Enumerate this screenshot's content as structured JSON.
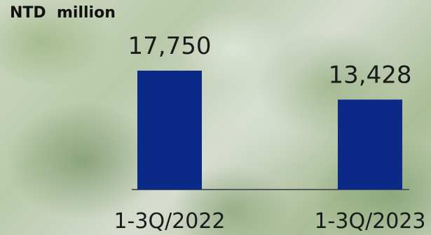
{
  "chart_data": {
    "type": "bar",
    "unit_label": "NTD  million",
    "categories": [
      "1-3Q/2022",
      "1-3Q/2023"
    ],
    "values": [
      17750,
      13428
    ],
    "value_labels": [
      "17,750",
      "13,428"
    ],
    "ylim": [
      0,
      17750
    ],
    "grid": false,
    "colors": {
      "bar": "#0b2a87",
      "axis": "#5a5a5a"
    }
  }
}
